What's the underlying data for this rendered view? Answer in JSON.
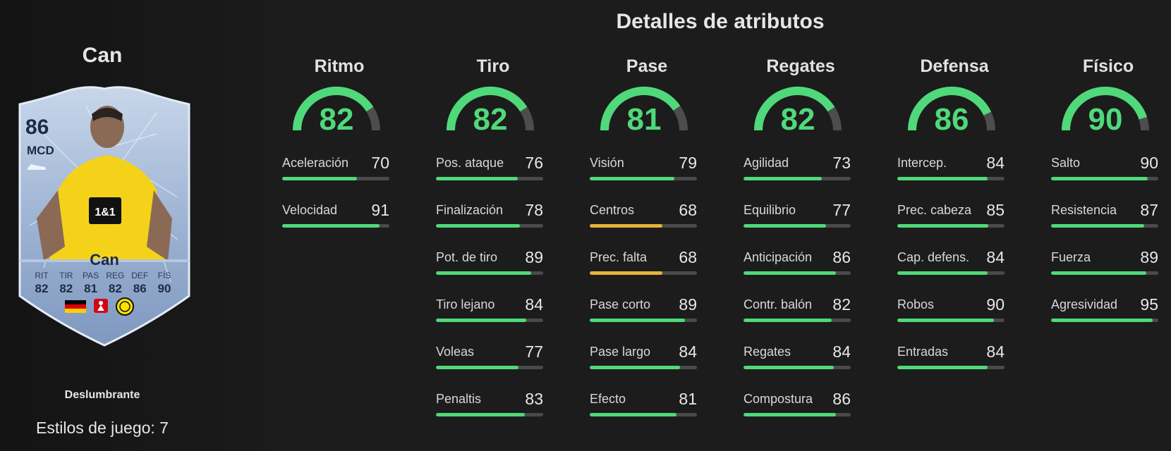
{
  "header": {
    "title": "Detalles de atributos"
  },
  "player": {
    "name": "Can",
    "card": {
      "rating": "86",
      "position": "MCD",
      "name": "Can",
      "stats": [
        {
          "label": "RIT",
          "value": "82"
        },
        {
          "label": "TIR",
          "value": "82"
        },
        {
          "label": "PAS",
          "value": "81"
        },
        {
          "label": "REG",
          "value": "82"
        },
        {
          "label": "DEF",
          "value": "86"
        },
        {
          "label": "FÍS",
          "value": "90"
        }
      ],
      "badge_colors": {
        "card": "#a9bfdc",
        "text": "#1f2a44"
      }
    },
    "playstyle": "Deslumbrante",
    "playstyles_count": "Estilos de juego: 7"
  },
  "colors": {
    "green": "#4fd97a",
    "yellow": "#e6b23a",
    "track": "#4a4a4a"
  },
  "categories": [
    {
      "title": "Ritmo",
      "value": 82,
      "attrs": [
        {
          "label": "Aceleración",
          "value": 70
        },
        {
          "label": "Velocidad",
          "value": 91
        }
      ]
    },
    {
      "title": "Tiro",
      "value": 82,
      "attrs": [
        {
          "label": "Pos. ataque",
          "value": 76
        },
        {
          "label": "Finalización",
          "value": 78
        },
        {
          "label": "Pot. de tiro",
          "value": 89
        },
        {
          "label": "Tiro lejano",
          "value": 84
        },
        {
          "label": "Voleas",
          "value": 77
        },
        {
          "label": "Penaltis",
          "value": 83
        }
      ]
    },
    {
      "title": "Pase",
      "value": 81,
      "attrs": [
        {
          "label": "Visión",
          "value": 79
        },
        {
          "label": "Centros",
          "value": 68
        },
        {
          "label": "Prec. falta",
          "value": 68
        },
        {
          "label": "Pase corto",
          "value": 89
        },
        {
          "label": "Pase largo",
          "value": 84
        },
        {
          "label": "Efecto",
          "value": 81
        }
      ]
    },
    {
      "title": "Regates",
      "value": 82,
      "attrs": [
        {
          "label": "Agilidad",
          "value": 73
        },
        {
          "label": "Equilibrio",
          "value": 77
        },
        {
          "label": "Anticipación",
          "value": 86
        },
        {
          "label": "Contr. balón",
          "value": 82
        },
        {
          "label": "Regates",
          "value": 84
        },
        {
          "label": "Compostura",
          "value": 86
        }
      ]
    },
    {
      "title": "Defensa",
      "value": 86,
      "attrs": [
        {
          "label": "Intercep.",
          "value": 84
        },
        {
          "label": "Prec. cabeza",
          "value": 85
        },
        {
          "label": "Cap. defens.",
          "value": 84
        },
        {
          "label": "Robos",
          "value": 90
        },
        {
          "label": "Entradas",
          "value": 84
        }
      ]
    },
    {
      "title": "Físico",
      "value": 90,
      "attrs": [
        {
          "label": "Salto",
          "value": 90
        },
        {
          "label": "Resistencia",
          "value": 87
        },
        {
          "label": "Fuerza",
          "value": 89
        },
        {
          "label": "Agresividad",
          "value": 95
        }
      ]
    }
  ]
}
